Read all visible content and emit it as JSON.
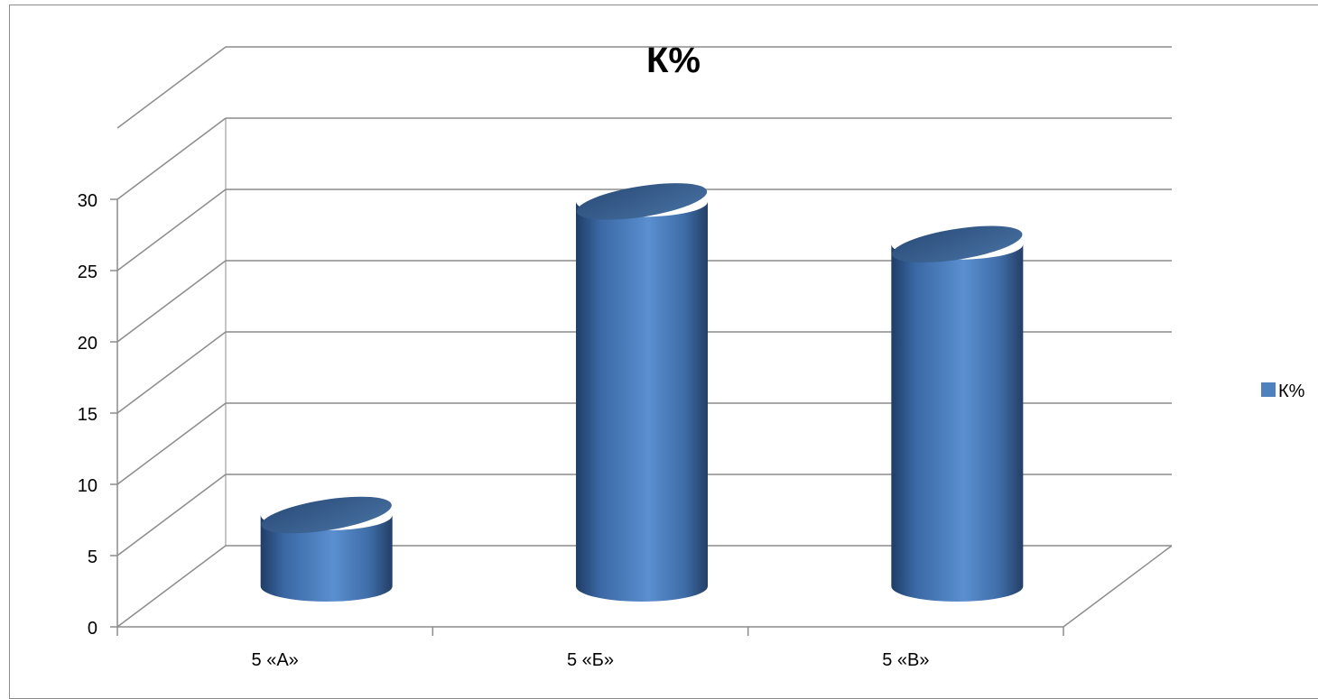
{
  "chart_data": {
    "type": "bar",
    "style": "3d-cylinder",
    "title": "К%",
    "categories": [
      "5 «А»",
      "5 «Б»",
      "5 «В»"
    ],
    "series": [
      {
        "name": "К%",
        "values": [
          5,
          27,
          24
        ],
        "color": "#4f81bd"
      }
    ],
    "ylim": [
      0,
      30
    ],
    "yticks": [
      0,
      5,
      10,
      15,
      20,
      25,
      30
    ],
    "grid": true,
    "legend_position": "right"
  }
}
